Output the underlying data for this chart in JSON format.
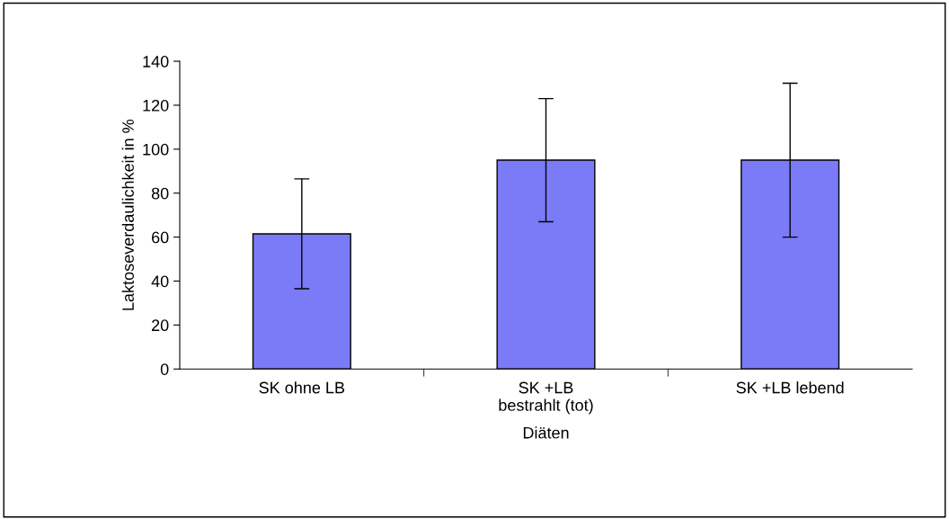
{
  "chart_data": {
    "type": "bar",
    "xlabel": "Diäten",
    "ylabel": "Laktoseverdaulichkeit in %",
    "categories": [
      "SK ohne LB",
      "SK +LB\nbestrahlt (tot)",
      "SK +LB lebend"
    ],
    "values": [
      61.5,
      95,
      95
    ],
    "errors": [
      25,
      28,
      35
    ],
    "color": "#7b7bf7",
    "ylim": [
      0,
      140
    ],
    "yticks": [
      0,
      20,
      40,
      60,
      80,
      100,
      120,
      140
    ],
    "grid": false,
    "legend": false
  }
}
